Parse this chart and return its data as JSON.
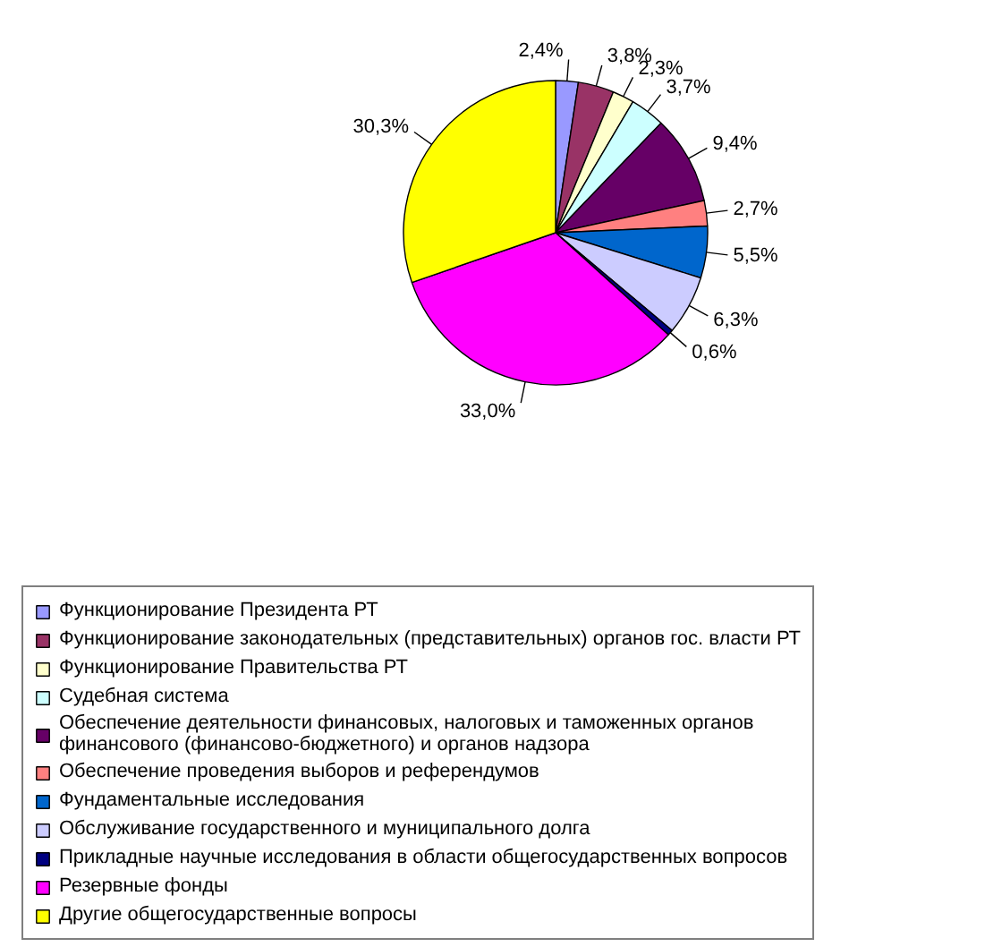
{
  "chart_data": {
    "type": "pie",
    "categories": [
      "Функционирование Президента РТ",
      "Функционирование законодательных (представительных) органов гос. власти РТ",
      "Функционирование Правительства РТ",
      "Судебная система",
      "Обеспечение деятельности финансовых, налоговых и таможенных органов финансового (финансово-бюджетного) и органов надзора",
      "Обеспечение проведения выборов и референдумов",
      "Фундаментальные исследования",
      "Обслуживание государственного и муниципального долга",
      "Прикладные научные исследования в области общегосударственных вопросов",
      "Резервные фонды",
      "Другие общегосударственные вопросы"
    ],
    "values": [
      2.4,
      3.8,
      2.3,
      3.7,
      9.4,
      2.7,
      5.5,
      6.3,
      0.6,
      33.0,
      30.3
    ],
    "value_labels": [
      "2,4%",
      "3,8%",
      "2,3%",
      "3,7%",
      "9,4%",
      "2,7%",
      "5,5%",
      "6,3%",
      "0,6%",
      "33,0%",
      "30,3%"
    ],
    "colors": [
      "#9999ff",
      "#993366",
      "#ffffcc",
      "#ccffff",
      "#660066",
      "#ff8080",
      "#0066cc",
      "#ccccff",
      "#000080",
      "#ff00ff",
      "#ffff00"
    ],
    "legend": "bottom"
  }
}
